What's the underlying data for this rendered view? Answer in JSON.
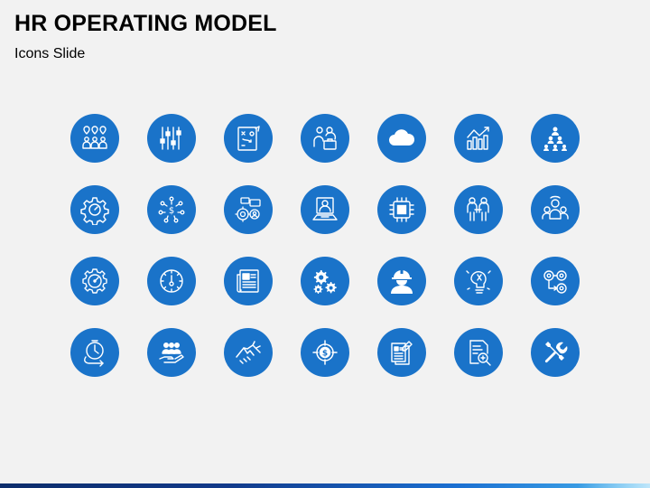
{
  "slide": {
    "title": "HR OPERATING MODEL",
    "subtitle": "Icons Slide"
  },
  "colors": {
    "background": "#f2f2f2",
    "icon_circle": "#1a73c9",
    "icon_stroke": "#ffffff"
  },
  "icons": [
    "team-locations-icon",
    "sliders-icon",
    "strategy-board-icon",
    "business-team-icon",
    "cloud-icon",
    "growth-chart-icon",
    "hierarchy-icon",
    "gear-icon",
    "money-network-icon",
    "team-settings-icon",
    "video-conference-icon",
    "microchip-icon",
    "team-meeting-icon",
    "group-icon",
    "gear-performance-icon",
    "stopwatch-icon",
    "newspaper-icon",
    "gears-icon",
    "engineer-icon",
    "innovation-icon",
    "process-icon",
    "time-cycle-icon",
    "hand-care-icon",
    "handshake-icon",
    "dollar-target-icon",
    "documents-icon",
    "document-search-icon",
    "tools-icon"
  ]
}
